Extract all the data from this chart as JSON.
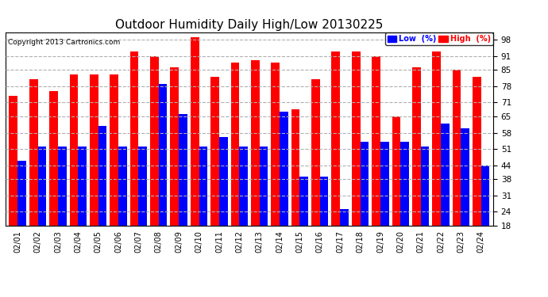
{
  "title": "Outdoor Humidity Daily High/Low 20130225",
  "copyright": "Copyright 2013 Cartronics.com",
  "dates": [
    "02/01",
    "02/02",
    "02/03",
    "02/04",
    "02/05",
    "02/06",
    "02/07",
    "02/08",
    "02/09",
    "02/10",
    "02/11",
    "02/12",
    "02/13",
    "02/14",
    "02/15",
    "02/16",
    "02/17",
    "02/18",
    "02/19",
    "02/20",
    "02/21",
    "02/22",
    "02/23",
    "02/24"
  ],
  "high": [
    74,
    81,
    76,
    83,
    83,
    83,
    93,
    91,
    86,
    99,
    82,
    88,
    89,
    88,
    68,
    81,
    93,
    93,
    91,
    65,
    86,
    93,
    85,
    82
  ],
  "low": [
    46,
    52,
    52,
    52,
    61,
    52,
    52,
    79,
    66,
    52,
    56,
    52,
    52,
    67,
    39,
    39,
    25,
    54,
    54,
    54,
    52,
    62,
    60,
    44
  ],
  "bar_color_high": "#ff0000",
  "bar_color_low": "#0000ff",
  "bg_color": "#ffffff",
  "grid_color": "#b0b0b0",
  "yticks": [
    18,
    24,
    31,
    38,
    44,
    51,
    58,
    65,
    71,
    78,
    85,
    91,
    98
  ],
  "ymin": 18,
  "ymax": 101,
  "title_fontsize": 11,
  "legend_low_label": "Low  (%)",
  "legend_high_label": "High  (%)"
}
